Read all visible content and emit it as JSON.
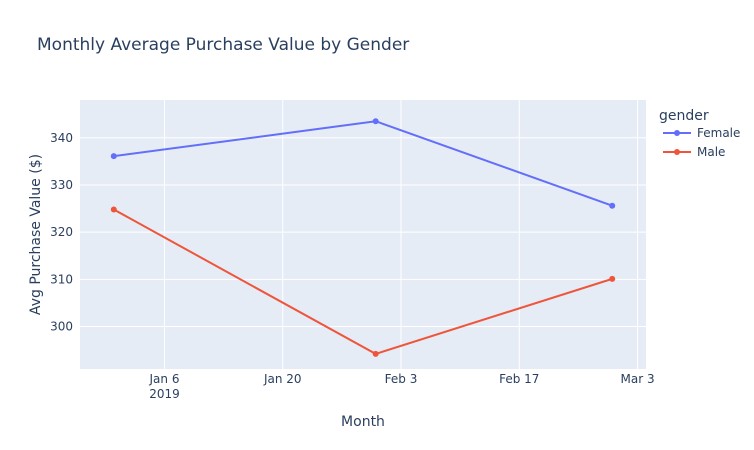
{
  "chart_data": {
    "type": "line",
    "title": "Monthly Average Purchase Value by Gender",
    "xlabel": "Month",
    "ylabel": "Avg Purchase Value ($)",
    "x": [
      "2018-12-31",
      "2019-01-31",
      "2019-02-28"
    ],
    "xlim": [
      "2018-12-27",
      "2019-03-04"
    ],
    "ylim": [
      291,
      348
    ],
    "x_ticks": [
      {
        "date": "2019-01-06",
        "label": "Jan 6",
        "sublabel": "2019"
      },
      {
        "date": "2019-01-20",
        "label": "Jan 20",
        "sublabel": ""
      },
      {
        "date": "2019-02-03",
        "label": "Feb 3",
        "sublabel": ""
      },
      {
        "date": "2019-02-17",
        "label": "Feb 17",
        "sublabel": ""
      },
      {
        "date": "2019-03-03",
        "label": "Mar 3",
        "sublabel": ""
      }
    ],
    "y_ticks": [
      300,
      310,
      320,
      330,
      340
    ],
    "legend_title": "gender",
    "legend_position": "right",
    "grid": true,
    "series": [
      {
        "name": "Female",
        "color": "#636efa",
        "values": [
          336.1,
          343.5,
          325.6
        ]
      },
      {
        "name": "Male",
        "color": "#ef553b",
        "values": [
          324.8,
          294.2,
          310.1
        ]
      }
    ],
    "plot_background": "#e5ecf6",
    "grid_color": "#ffffff"
  }
}
